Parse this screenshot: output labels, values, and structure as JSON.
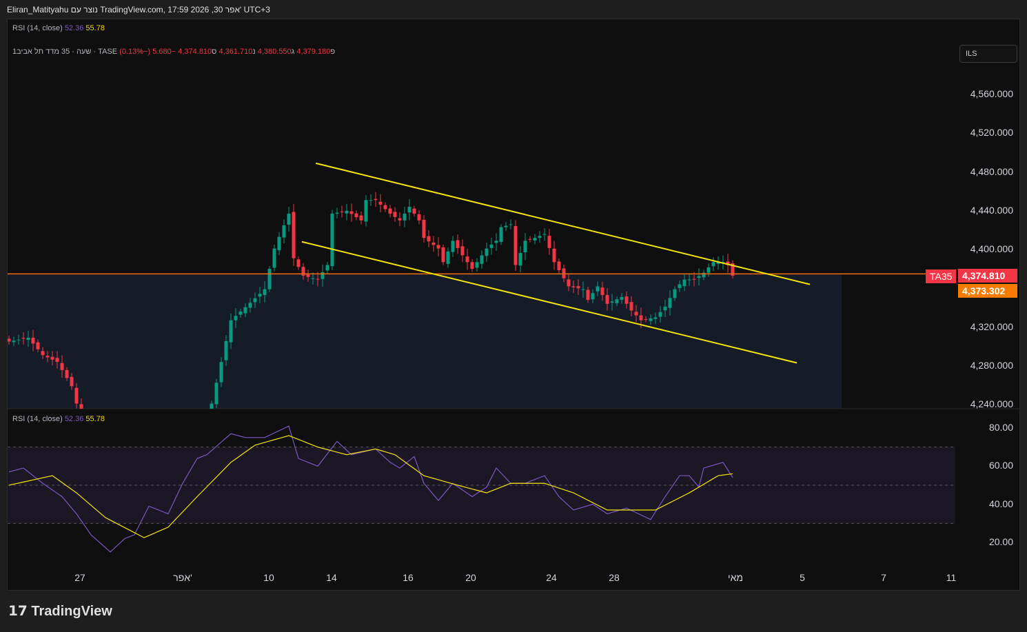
{
  "header": {
    "title": "Eliran_Matityahu נוצר עם TradingView.com, 17:59 2026 ,30 אפר' UTC+3"
  },
  "top_legend": {
    "name": "RSI (14, close)",
    "v1": "52.36",
    "v2": "55.78"
  },
  "symbol_legend": {
    "name": "1שעה · 35 מדד תל אביב · TASE",
    "o_label": "פ",
    "o": "4,379.180",
    "h_label": "ג",
    "h": "4,380.550",
    "l_label": "נ",
    "l": "4,361.710",
    "c_label": "ס",
    "c": "4,374.810",
    "change": "−5.680 (−0.13%)"
  },
  "currency": "ILS",
  "price_tags": {
    "symbol": "TA35",
    "last": "4,374.810",
    "ma": "4,373.302"
  },
  "colors": {
    "up": "#089981",
    "down": "#f23645",
    "trend": "#f5e60a",
    "price_line": "#ff6d00",
    "rsi": "#7e57c2",
    "rsi_ma": "#f5e60a"
  },
  "rsi_legend": {
    "name": "RSI (14, close)",
    "v1": "52.36",
    "v2": "55.78"
  },
  "chart_data": [
    {
      "type": "candlestick",
      "title": "מדד תל אביב 35 · 1שעה",
      "ylim": [
        4240,
        4580
      ],
      "y_ticks": [
        "4,560.000",
        "4,520.000",
        "4,480.000",
        "4,440.000",
        "4,400.000",
        "4,320.000",
        "4,280.000",
        "4,240.000"
      ],
      "y_tick_values": [
        4560,
        4520,
        4480,
        4440,
        4400,
        4320,
        4280,
        4240
      ],
      "last_price": 4374.81,
      "close_keypoints": [
        [
          0,
          4305
        ],
        [
          4,
          4309
        ],
        [
          7,
          4291
        ],
        [
          10,
          4284
        ],
        [
          13,
          4259
        ],
        [
          14,
          4241
        ],
        [
          17,
          4200
        ],
        [
          40,
          4200
        ],
        [
          42,
          4241
        ],
        [
          46,
          4327
        ],
        [
          50,
          4345
        ],
        [
          53,
          4359
        ],
        [
          55,
          4401
        ],
        [
          58,
          4437
        ],
        [
          59,
          4391
        ],
        [
          61,
          4373
        ],
        [
          64,
          4369
        ],
        [
          66,
          4384
        ],
        [
          67,
          4437
        ],
        [
          70,
          4440
        ],
        [
          73,
          4430
        ],
        [
          74,
          4451
        ],
        [
          76,
          4451
        ],
        [
          79,
          4437
        ],
        [
          81,
          4430
        ],
        [
          83,
          4444
        ],
        [
          85,
          4430
        ],
        [
          86,
          4412
        ],
        [
          89,
          4401
        ],
        [
          90,
          4387
        ],
        [
          92,
          4409
        ],
        [
          94,
          4394
        ],
        [
          96,
          4380
        ],
        [
          99,
          4401
        ],
        [
          101,
          4409
        ],
        [
          102,
          4423
        ],
        [
          104,
          4426
        ],
        [
          105,
          4384
        ],
        [
          107,
          4409
        ],
        [
          109,
          4412
        ],
        [
          111,
          4416
        ],
        [
          113,
          4387
        ],
        [
          116,
          4362
        ],
        [
          119,
          4359
        ],
        [
          120,
          4348
        ],
        [
          122,
          4362
        ],
        [
          124,
          4344
        ],
        [
          127,
          4351
        ],
        [
          129,
          4337
        ],
        [
          131,
          4327
        ],
        [
          134,
          4330
        ],
        [
          136,
          4341
        ],
        [
          138,
          4359
        ],
        [
          140,
          4369
        ],
        [
          142,
          4369
        ],
        [
          144,
          4376
        ],
        [
          146,
          4387
        ],
        [
          148,
          4387
        ],
        [
          149,
          4384
        ],
        [
          150,
          4373
        ]
      ],
      "trendlines": [
        {
          "from": [
            63.6,
            4489
          ],
          "to": [
            166,
            4364
          ]
        },
        {
          "from": [
            60.7,
            4408
          ],
          "to": [
            163.3,
            4283
          ]
        }
      ]
    },
    {
      "type": "line",
      "title": "RSI (14, close)",
      "ylim": [
        10,
        90
      ],
      "y_ticks": [
        "80.00",
        "60.00",
        "40.00",
        "20.00"
      ],
      "y_tick_values": [
        80,
        60,
        40,
        20
      ],
      "bands": [
        30,
        50,
        70
      ],
      "series": [
        {
          "name": "RSI",
          "points": [
            [
              0,
              57
            ],
            [
              3,
              59
            ],
            [
              7,
              51
            ],
            [
              11,
              44
            ],
            [
              14,
              35
            ],
            [
              17,
              24
            ],
            [
              21,
              15
            ],
            [
              24,
              22
            ],
            [
              26,
              24
            ],
            [
              29,
              39
            ],
            [
              33,
              35
            ],
            [
              36,
              51
            ],
            [
              39,
              64
            ],
            [
              41,
              66
            ],
            [
              46,
              77
            ],
            [
              49,
              75
            ],
            [
              53,
              75
            ],
            [
              58,
              81
            ],
            [
              60,
              64
            ],
            [
              64,
              60
            ],
            [
              68,
              73
            ],
            [
              71,
              66
            ],
            [
              76,
              69
            ],
            [
              79,
              62
            ],
            [
              81,
              59
            ],
            [
              84,
              65
            ],
            [
              86,
              51
            ],
            [
              89,
              42
            ],
            [
              92,
              51
            ],
            [
              96,
              44
            ],
            [
              99,
              49
            ],
            [
              101,
              59
            ],
            [
              104,
              51
            ],
            [
              107,
              51
            ],
            [
              111,
              55
            ],
            [
              114,
              44
            ],
            [
              117,
              37
            ],
            [
              121,
              40
            ],
            [
              124,
              35
            ],
            [
              128,
              38
            ],
            [
              133,
              32
            ],
            [
              136,
              44
            ],
            [
              139,
              55
            ],
            [
              141,
              55
            ],
            [
              143,
              49
            ],
            [
              144,
              59
            ],
            [
              148,
              62
            ],
            [
              150,
              54
            ]
          ]
        },
        {
          "name": "RSI-based MA",
          "points": [
            [
              0,
              50
            ],
            [
              9,
              55
            ],
            [
              14,
              46
            ],
            [
              20,
              33
            ],
            [
              28,
              22.5
            ],
            [
              33,
              28
            ],
            [
              39,
              44
            ],
            [
              46,
              62
            ],
            [
              51,
              71
            ],
            [
              58,
              76
            ],
            [
              64,
              70
            ],
            [
              70,
              66
            ],
            [
              76,
              69
            ],
            [
              80,
              66
            ],
            [
              86,
              55
            ],
            [
              93,
              50
            ],
            [
              99,
              46
            ],
            [
              104,
              51
            ],
            [
              111,
              51
            ],
            [
              117,
              46
            ],
            [
              124,
              37
            ],
            [
              134,
              37
            ],
            [
              141,
              46
            ],
            [
              147,
              55
            ],
            [
              150,
              56
            ]
          ]
        }
      ]
    }
  ],
  "x_axis": {
    "labels": [
      "27",
      "אפר'",
      "10",
      "14",
      "16",
      "20",
      "24",
      "28",
      "מאי",
      "5",
      "7",
      "11"
    ]
  },
  "logo": "TradingView"
}
